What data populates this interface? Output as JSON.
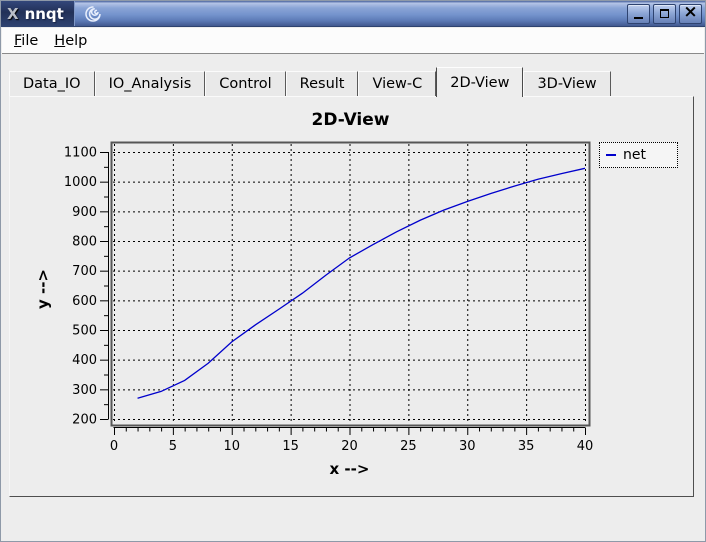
{
  "window": {
    "title": "nnqt",
    "icons": {
      "x11_logo": "X",
      "app_icon": "spiral-icon",
      "close_glyph": "×"
    },
    "controls": [
      "minimize",
      "maximize",
      "close"
    ]
  },
  "menu": {
    "items": [
      {
        "label": "File"
      },
      {
        "label": "Help"
      }
    ]
  },
  "tabs": {
    "items": [
      {
        "label": "Data_IO",
        "active": false
      },
      {
        "label": "IO_Analysis",
        "active": false
      },
      {
        "label": "Control",
        "active": false
      },
      {
        "label": "Result",
        "active": false
      },
      {
        "label": "View-C",
        "active": false
      },
      {
        "label": "2D-View",
        "active": true
      },
      {
        "label": "3D-View",
        "active": false
      }
    ]
  },
  "chart_data": {
    "type": "line",
    "title": "2D-View",
    "xlabel": "x -->",
    "ylabel": "y -->",
    "xlim": [
      0,
      40
    ],
    "ylim": [
      200,
      1100
    ],
    "xticks": [
      0,
      5,
      10,
      15,
      20,
      25,
      30,
      35,
      40
    ],
    "x_minor_step": 1,
    "yticks": [
      200,
      300,
      400,
      500,
      600,
      700,
      800,
      900,
      1000,
      1100
    ],
    "y_minor_step": 50,
    "grid": true,
    "grid_style": "dashed",
    "legend": {
      "position": "top-right",
      "entries": [
        {
          "label": "net",
          "color": "#0000cc"
        }
      ]
    },
    "series": [
      {
        "name": "net",
        "color": "#0000cc",
        "x": [
          2,
          4,
          6,
          8,
          10,
          12,
          14,
          16,
          18,
          20,
          22,
          24,
          26,
          28,
          30,
          32,
          34,
          36,
          38,
          40
        ],
        "y": [
          270,
          293,
          330,
          388,
          460,
          517,
          570,
          624,
          685,
          743,
          788,
          831,
          870,
          904,
          933,
          960,
          985,
          1008,
          1027,
          1045
        ]
      }
    ],
    "colors": {
      "curve": "#0000cc",
      "canvas_bg": "#ececec",
      "frame": "#565656",
      "grid": "#000000"
    }
  }
}
